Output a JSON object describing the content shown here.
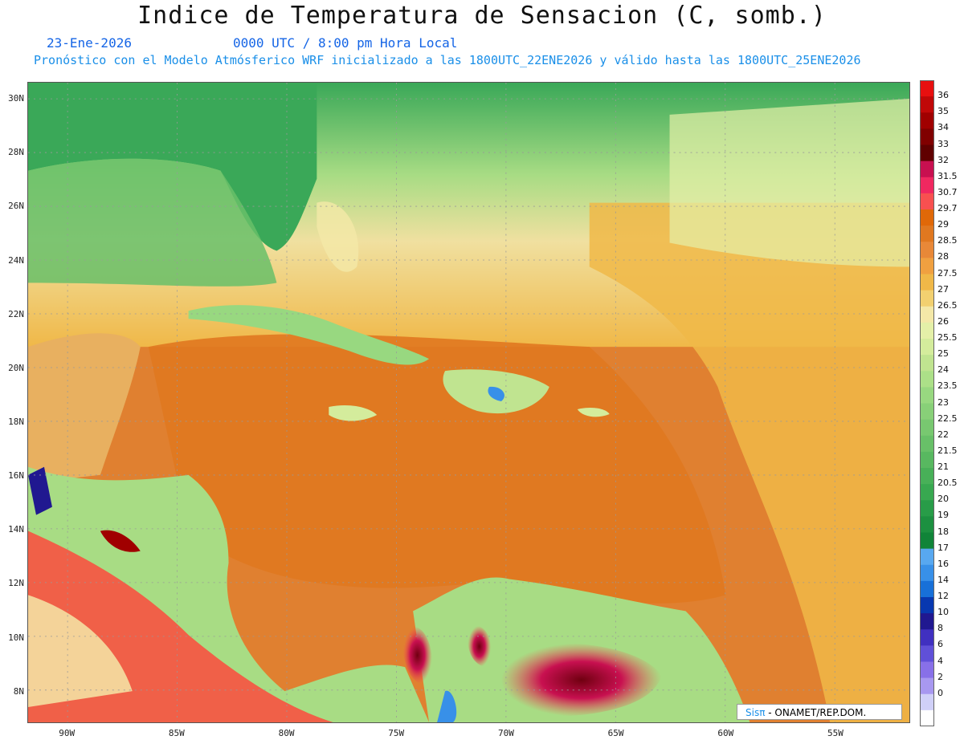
{
  "header": {
    "title": "Indice de Temperatura de Sensacion (C, somb.)",
    "date": "23-Ene-2026",
    "time": "0000 UTC / 8:00 pm Hora Local",
    "forecast": "Pronóstico con el Modelo Atmósferico WRF inicializado a las 1800UTC_22ENE2026 y válido hasta las  1800UTC_25ENE2026"
  },
  "map": {
    "lat_labels": [
      "30N",
      "28N",
      "26N",
      "24N",
      "22N",
      "20N",
      "18N",
      "16N",
      "14N",
      "12N",
      "10N",
      "8N"
    ],
    "lon_labels": [
      "90W",
      "85W",
      "80W",
      "75W",
      "70W",
      "65W",
      "60W",
      "55W"
    ],
    "lat_values": [
      30,
      28,
      26,
      24,
      22,
      20,
      18,
      16,
      14,
      12,
      10,
      8
    ],
    "lon_values": [
      -90,
      -85,
      -80,
      -75,
      -70,
      -65,
      -60,
      -55
    ],
    "lat_range": [
      6.8,
      30.6
    ],
    "lon_range": [
      -91.8,
      -51.6
    ],
    "background_color": "#e08030"
  },
  "colorbar": {
    "labels": [
      "36",
      "35",
      "34",
      "33",
      "32",
      "31.5",
      "30.7",
      "29.7",
      "29",
      "28.5",
      "28",
      "27.5",
      "27",
      "26.5",
      "26",
      "25.5",
      "25",
      "24",
      "23.5",
      "23",
      "22.5",
      "22",
      "21.5",
      "21",
      "20.5",
      "20",
      "19",
      "18",
      "17",
      "16",
      "14",
      "12",
      "10",
      "8",
      "6",
      "4",
      "2",
      "0"
    ],
    "colors": [
      "#e81010",
      "#c00808",
      "#a00000",
      "#800000",
      "#600000",
      "#c81050",
      "#f02860",
      "#f85050",
      "#e06808",
      "#e07820",
      "#e88838",
      "#f0a040",
      "#f0b848",
      "#f2d070",
      "#f4e8a8",
      "#e4f0a8",
      "#d4ec9c",
      "#c0e490",
      "#ace088",
      "#98d880",
      "#88d078",
      "#78c870",
      "#68c068",
      "#58b860",
      "#48b058",
      "#38a850",
      "#289c48",
      "#1c9040",
      "#108438",
      "#58a8f0",
      "#3890e8",
      "#1870d8",
      "#0838b0",
      "#201890",
      "#4030c0",
      "#6050d8",
      "#8870e8",
      "#a898f0",
      "#d0d0f8",
      "#ffffff"
    ]
  },
  "credit": {
    "brand": "Sisπ",
    "text": " - ONAMET/REP.DOM."
  }
}
